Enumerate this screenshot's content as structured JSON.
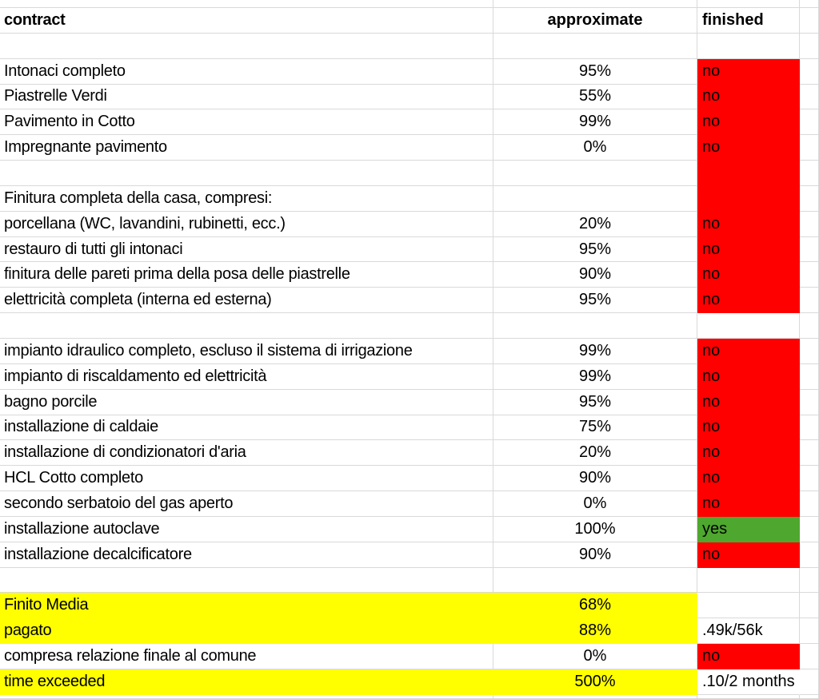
{
  "columns": {
    "contract": "contract",
    "approximate": "approximate",
    "finished": "finished"
  },
  "colors": {
    "red": "#ff0000",
    "green": "#4ea72e",
    "yellow": "#ffff00",
    "gridline": "#d9d9d9",
    "text": "#000000"
  },
  "rows": [
    {
      "contract": "",
      "approximate": "",
      "finished": "",
      "finished_fill": "none",
      "row_fill": "none",
      "spill": false
    },
    {
      "contract": "Intonaci completo",
      "approximate": "95%",
      "finished": "no",
      "finished_fill": "red",
      "row_fill": "none",
      "spill": false
    },
    {
      "contract": "Piastrelle Verdi",
      "approximate": "55%",
      "finished": "no",
      "finished_fill": "red",
      "row_fill": "none",
      "spill": false
    },
    {
      "contract": "Pavimento in Cotto",
      "approximate": "99%",
      "finished": "no",
      "finished_fill": "red",
      "row_fill": "none",
      "spill": false
    },
    {
      "contract": "Impregnante pavimento",
      "approximate": "0%",
      "finished": "no",
      "finished_fill": "red",
      "row_fill": "none",
      "spill": false
    },
    {
      "contract": "",
      "approximate": "",
      "finished": "",
      "finished_fill": "red",
      "row_fill": "none",
      "spill": false
    },
    {
      "contract": "Finitura completa della casa, compresi:",
      "approximate": "",
      "finished": "",
      "finished_fill": "red",
      "row_fill": "none",
      "spill": false
    },
    {
      "contract": "porcellana (WC, lavandini, rubinetti, ecc.)",
      "approximate": "20%",
      "finished": "no",
      "finished_fill": "red",
      "row_fill": "none",
      "spill": false
    },
    {
      "contract": "restauro di tutti gli intonaci",
      "approximate": "95%",
      "finished": "no",
      "finished_fill": "red",
      "row_fill": "none",
      "spill": false
    },
    {
      "contract": "finitura delle pareti prima della posa delle piastrelle",
      "approximate": "90%",
      "finished": "no",
      "finished_fill": "red",
      "row_fill": "none",
      "spill": false
    },
    {
      "contract": "elettricità completa (interna ed esterna)",
      "approximate": "95%",
      "finished": "no",
      "finished_fill": "red",
      "row_fill": "none",
      "spill": false
    },
    {
      "contract": "",
      "approximate": "",
      "finished": "",
      "finished_fill": "none",
      "row_fill": "none",
      "spill": false
    },
    {
      "contract": "impianto idraulico completo, escluso il sistema di irrigazione",
      "approximate": "99%",
      "finished": "no",
      "finished_fill": "red",
      "row_fill": "none",
      "spill": false
    },
    {
      "contract": "impianto di riscaldamento ed elettricità",
      "approximate": "99%",
      "finished": "no",
      "finished_fill": "red",
      "row_fill": "none",
      "spill": false
    },
    {
      "contract": "bagno porcile",
      "approximate": "95%",
      "finished": "no",
      "finished_fill": "red",
      "row_fill": "none",
      "spill": false
    },
    {
      "contract": "installazione di caldaie",
      "approximate": "75%",
      "finished": "no",
      "finished_fill": "red",
      "row_fill": "none",
      "spill": false
    },
    {
      "contract": "installazione di condizionatori d'aria",
      "approximate": "20%",
      "finished": "no",
      "finished_fill": "red",
      "row_fill": "none",
      "spill": false
    },
    {
      "contract": "HCL Cotto completo",
      "approximate": "90%",
      "finished": "no",
      "finished_fill": "red",
      "row_fill": "none",
      "spill": false
    },
    {
      "contract": "secondo serbatoio del gas aperto",
      "approximate": "0%",
      "finished": "no",
      "finished_fill": "red",
      "row_fill": "none",
      "spill": false
    },
    {
      "contract": "installazione autoclave",
      "approximate": "100%",
      "finished": "yes",
      "finished_fill": "green",
      "row_fill": "none",
      "spill": false
    },
    {
      "contract": "installazione decalcificatore",
      "approximate": "90%",
      "finished": "no",
      "finished_fill": "red",
      "row_fill": "none",
      "spill": false
    },
    {
      "contract": "",
      "approximate": "",
      "finished": "",
      "finished_fill": "none",
      "row_fill": "none",
      "spill": false
    },
    {
      "contract": "Finito Media",
      "approximate": "68%",
      "finished": "",
      "finished_fill": "none",
      "row_fill": "yellow",
      "spill": false
    },
    {
      "contract": "pagato",
      "approximate": "88%",
      "finished": ".49k/56k",
      "finished_fill": "none",
      "row_fill": "yellow",
      "spill": false
    },
    {
      "contract": "compresa relazione finale al comune",
      "approximate": "0%",
      "finished": "no",
      "finished_fill": "red",
      "row_fill": "none",
      "spill": false
    },
    {
      "contract": "time exceeded",
      "approximate": "500%",
      "finished": ".10/2 months",
      "finished_fill": "none",
      "row_fill": "yellow",
      "spill": true
    }
  ]
}
